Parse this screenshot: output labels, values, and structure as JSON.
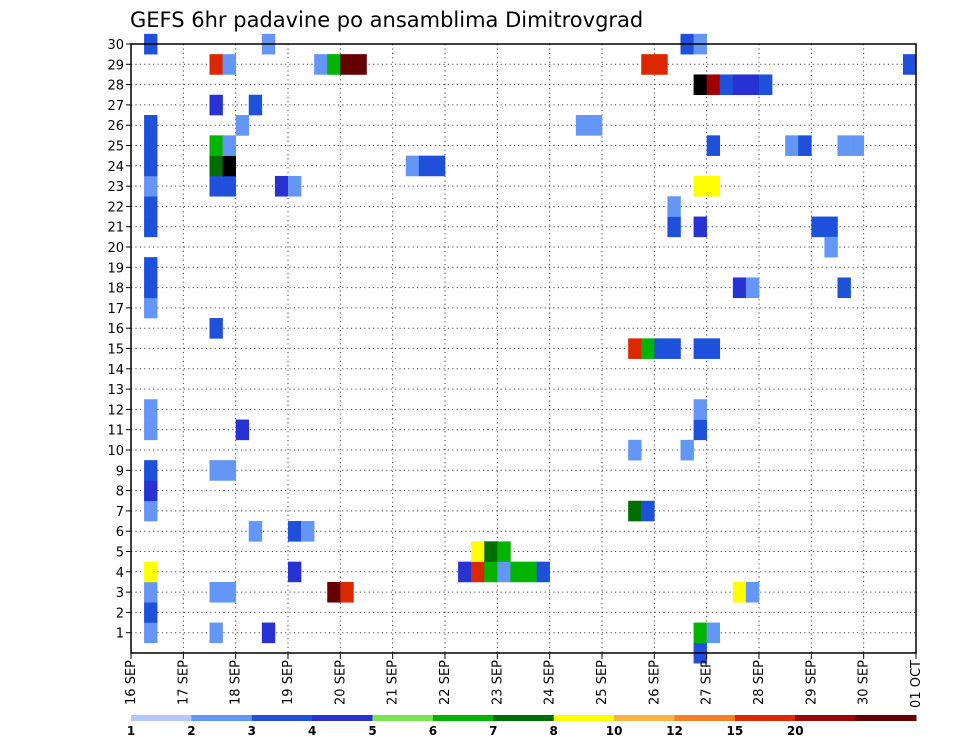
{
  "chart_data": {
    "type": "heatmap",
    "title": "GEFS 6hr padavine po ansamblima Dimitrovgrad",
    "x_ticks": [
      "16 SEP",
      "17 SEP",
      "18 SEP",
      "19 SEP",
      "20 SEP",
      "21 SEP",
      "22 SEP",
      "23 SEP",
      "24 SEP",
      "25 SEP",
      "26 SEP",
      "27 SEP",
      "28 SEP",
      "29 SEP",
      "30 SEP",
      "01 OCT"
    ],
    "x_range_steps": [
      0,
      60
    ],
    "y_ticks": [
      "1",
      "2",
      "3",
      "4",
      "5",
      "6",
      "7",
      "8",
      "9",
      "10",
      "11",
      "12",
      "13",
      "14",
      "15",
      "16",
      "17",
      "18",
      "19",
      "20",
      "21",
      "22",
      "23",
      "24",
      "25",
      "26",
      "27",
      "28",
      "29",
      "30"
    ],
    "y_range_members": [
      0,
      30
    ],
    "grid": "dotted",
    "colorbar": {
      "labels": [
        "1",
        "2",
        "3",
        "4",
        "5",
        "6",
        "7",
        "8",
        "10",
        "12",
        "15",
        "20"
      ],
      "colors": [
        "#b4c8fa",
        "#6496f5",
        "#1e50dc",
        "#2832d2",
        "#78e650",
        "#00b400",
        "#006e00",
        "#ffff00",
        "#fab43c",
        "#f5821e",
        "#dc2800",
        "#a00000",
        "#640000"
      ]
    },
    "cells": [
      [
        1,
        1,
        1
      ],
      [
        1,
        2,
        2
      ],
      [
        1,
        3,
        1
      ],
      [
        1,
        4,
        7
      ],
      [
        1,
        7,
        1
      ],
      [
        1,
        8,
        3
      ],
      [
        1,
        9,
        2
      ],
      [
        1,
        11,
        1
      ],
      [
        1,
        12,
        1
      ],
      [
        1,
        17,
        1
      ],
      [
        1,
        18,
        2
      ],
      [
        1,
        19,
        2
      ],
      [
        1,
        21,
        2
      ],
      [
        1,
        22,
        2
      ],
      [
        1,
        23,
        1
      ],
      [
        1,
        24,
        2
      ],
      [
        1,
        25,
        2
      ],
      [
        1,
        26,
        2
      ],
      [
        1,
        30,
        2
      ],
      [
        6,
        1,
        1
      ],
      [
        6,
        3,
        1
      ],
      [
        6,
        9,
        1
      ],
      [
        6,
        16,
        2
      ],
      [
        6,
        23,
        2
      ],
      [
        6,
        24,
        6
      ],
      [
        6,
        25,
        5
      ],
      [
        6,
        27,
        3
      ],
      [
        6,
        29,
        10
      ],
      [
        7,
        3,
        1
      ],
      [
        7,
        9,
        1
      ],
      [
        7,
        23,
        2
      ],
      [
        7,
        24,
        13
      ],
      [
        7,
        25,
        1
      ],
      [
        7,
        29,
        1
      ],
      [
        8,
        11,
        3
      ],
      [
        8,
        26,
        1
      ],
      [
        9,
        6,
        1
      ],
      [
        9,
        27,
        2
      ],
      [
        10,
        1,
        3
      ],
      [
        10,
        30,
        1
      ],
      [
        11,
        23,
        3
      ],
      [
        12,
        4,
        3
      ],
      [
        12,
        6,
        2
      ],
      [
        12,
        23,
        1
      ],
      [
        13,
        6,
        1
      ],
      [
        14,
        29,
        1
      ],
      [
        15,
        3,
        12
      ],
      [
        15,
        29,
        5
      ],
      [
        16,
        3,
        10
      ],
      [
        16,
        29,
        12
      ],
      [
        17,
        29,
        12
      ],
      [
        21,
        24,
        1
      ],
      [
        22,
        24,
        2
      ],
      [
        23,
        24,
        2
      ],
      [
        25,
        4,
        3
      ],
      [
        26,
        4,
        10
      ],
      [
        26,
        5,
        7
      ],
      [
        27,
        4,
        5
      ],
      [
        27,
        5,
        6
      ],
      [
        28,
        4,
        1
      ],
      [
        28,
        5,
        5
      ],
      [
        29,
        4,
        5
      ],
      [
        30,
        4,
        5
      ],
      [
        31,
        4,
        2
      ],
      [
        34,
        26,
        1
      ],
      [
        35,
        26,
        1
      ],
      [
        38,
        7,
        6
      ],
      [
        38,
        10,
        1
      ],
      [
        38,
        15,
        10
      ],
      [
        39,
        7,
        2
      ],
      [
        39,
        15,
        5
      ],
      [
        39,
        29,
        10
      ],
      [
        40,
        29,
        10
      ],
      [
        40,
        15,
        2
      ],
      [
        41,
        15,
        2
      ],
      [
        43,
        15,
        2
      ],
      [
        44,
        15,
        2
      ],
      [
        41,
        21,
        2
      ],
      [
        41,
        22,
        1
      ],
      [
        42,
        10,
        1
      ],
      [
        42,
        30,
        2
      ],
      [
        43,
        0,
        2
      ],
      [
        43,
        1,
        5
      ],
      [
        43,
        11,
        2
      ],
      [
        43,
        12,
        1
      ],
      [
        43,
        21,
        3
      ],
      [
        43,
        23,
        7
      ],
      [
        43,
        28,
        13
      ],
      [
        43,
        30,
        1
      ],
      [
        44,
        1,
        1
      ],
      [
        44,
        23,
        7
      ],
      [
        44,
        28,
        11
      ],
      [
        44,
        25,
        2
      ],
      [
        45,
        28,
        2
      ],
      [
        46,
        28,
        3
      ],
      [
        47,
        28,
        3
      ],
      [
        48,
        28,
        2
      ],
      [
        46,
        3,
        7
      ],
      [
        47,
        3,
        1
      ],
      [
        46,
        18,
        3
      ],
      [
        47,
        18,
        1
      ],
      [
        50,
        25,
        1
      ],
      [
        51,
        25,
        2
      ],
      [
        52,
        21,
        2
      ],
      [
        53,
        21,
        2
      ],
      [
        53,
        20,
        1
      ],
      [
        54,
        18,
        2
      ],
      [
        54,
        25,
        1
      ],
      [
        55,
        25,
        1
      ],
      [
        59,
        29,
        2
      ]
    ]
  }
}
